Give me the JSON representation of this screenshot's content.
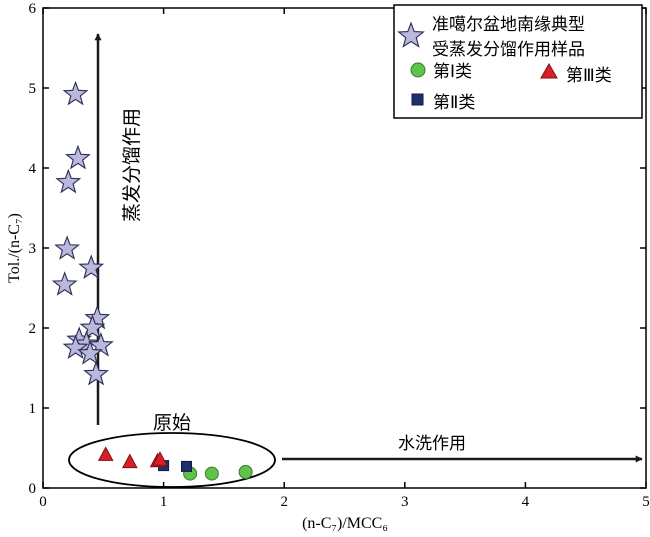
{
  "chart_data": {
    "type": "scatter",
    "xlabel": "(n-C₇)/MCC₆",
    "ylabel": "Tol./(n-C₇)",
    "xlim": [
      0,
      5
    ],
    "ylim": [
      0,
      6
    ],
    "x_ticks": [
      "0",
      "1",
      "2",
      "3",
      "4",
      "5"
    ],
    "y_ticks": [
      "0",
      "1",
      "2",
      "3",
      "4",
      "5",
      "6"
    ],
    "grid": false,
    "legend_position": "top-right",
    "legend": {
      "star": [
        "准噶尔盆地南缘典型",
        "受蒸发分馏作用样品"
      ],
      "class1": "第Ⅰ类",
      "class2": "第Ⅱ类",
      "class3": "第Ⅲ类"
    },
    "annotations": {
      "evaporation": "蒸发分馏作用",
      "water_washing": "水洗作用",
      "original": "原始"
    },
    "series": [
      {
        "name": "准噶尔盆地南缘典型受蒸发分馏作用样品",
        "marker": "star",
        "color": "#b8b9dc",
        "points": [
          [
            0.27,
            4.92
          ],
          [
            0.29,
            4.12
          ],
          [
            0.21,
            3.82
          ],
          [
            0.2,
            2.99
          ],
          [
            0.4,
            2.75
          ],
          [
            0.18,
            2.54
          ],
          [
            0.45,
            2.12
          ],
          [
            0.41,
            2.0
          ],
          [
            0.3,
            1.85
          ],
          [
            0.36,
            1.8
          ],
          [
            0.48,
            1.78
          ],
          [
            0.27,
            1.75
          ],
          [
            0.39,
            1.68
          ],
          [
            0.44,
            1.42
          ]
        ]
      },
      {
        "name": "第Ⅰ类",
        "marker": "circle",
        "color": "#5fc24a",
        "points": [
          [
            1.22,
            0.18
          ],
          [
            1.4,
            0.18
          ],
          [
            1.68,
            0.2
          ]
        ]
      },
      {
        "name": "第Ⅱ类",
        "marker": "square",
        "color": "#1d2f6e",
        "points": [
          [
            1.0,
            0.28
          ],
          [
            1.19,
            0.27
          ]
        ]
      },
      {
        "name": "第Ⅲ类",
        "marker": "triangle",
        "color": "#dc1f26",
        "points": [
          [
            0.52,
            0.42
          ],
          [
            0.72,
            0.33
          ],
          [
            0.95,
            0.34
          ],
          [
            0.97,
            0.36
          ]
        ]
      }
    ]
  }
}
